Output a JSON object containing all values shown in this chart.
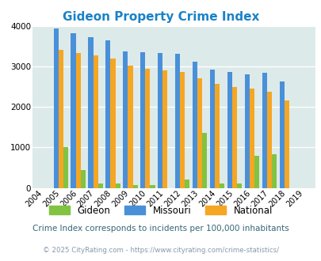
{
  "title": "Gideon Property Crime Index",
  "years": [
    2004,
    2005,
    2006,
    2007,
    2008,
    2009,
    2010,
    2011,
    2012,
    2013,
    2014,
    2015,
    2016,
    2017,
    2018,
    2019
  ],
  "gideon": [
    0,
    1000,
    450,
    110,
    110,
    80,
    80,
    0,
    200,
    1360,
    110,
    110,
    790,
    830,
    0,
    0
  ],
  "missouri": [
    0,
    3940,
    3820,
    3720,
    3640,
    3380,
    3350,
    3330,
    3320,
    3130,
    2920,
    2860,
    2800,
    2840,
    2640,
    0
  ],
  "national": [
    0,
    3420,
    3340,
    3280,
    3200,
    3030,
    2940,
    2900,
    2860,
    2700,
    2580,
    2500,
    2450,
    2380,
    2160,
    0
  ],
  "gideon_color": "#82c341",
  "missouri_color": "#4a90d9",
  "national_color": "#f5a623",
  "bg_color": "#ddeaea",
  "ylim": [
    0,
    4000
  ],
  "yticks": [
    0,
    1000,
    2000,
    3000,
    4000
  ],
  "subtitle": "Crime Index corresponds to incidents per 100,000 inhabitants",
  "footer": "© 2025 CityRating.com - https://www.cityrating.com/crime-statistics/",
  "title_color": "#1a82c8",
  "subtitle_color": "#336677",
  "footer_color": "#8899aa"
}
